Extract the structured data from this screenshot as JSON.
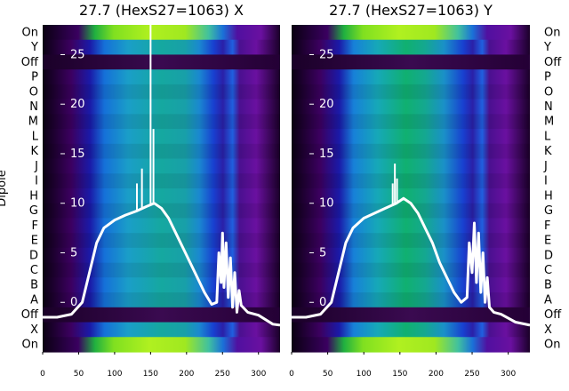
{
  "chart_data": [
    {
      "type": "heatmap",
      "title": "27.7 (HexS27=1063) X",
      "ylabel": "Dipole",
      "xlim": [
        0,
        330
      ],
      "xticks": [
        0,
        50,
        100,
        150,
        200,
        250,
        300
      ],
      "row_labels": [
        "On",
        "Y",
        "Off",
        "P",
        "O",
        "N",
        "M",
        "L",
        "K",
        "J",
        "I",
        "H",
        "G",
        "F",
        "E",
        "D",
        "C",
        "B",
        "A",
        "Off",
        "X",
        "On"
      ],
      "overlay_yticks": [
        25,
        20,
        15,
        10,
        5,
        0
      ],
      "overlay_ylim": [
        -5,
        28
      ],
      "trace": {
        "x": [
          0,
          20,
          40,
          55,
          65,
          75,
          85,
          100,
          115,
          130,
          145,
          155,
          165,
          175,
          185,
          195,
          205,
          215,
          225,
          235,
          242,
          245,
          248,
          250,
          252,
          255,
          258,
          261,
          264,
          267,
          270,
          273,
          276,
          285,
          300,
          320,
          330
        ],
        "y": [
          -1.5,
          -1.5,
          -1.2,
          0,
          3,
          6,
          7.5,
          8.3,
          8.8,
          9.2,
          9.7,
          10,
          9.5,
          8.5,
          7,
          5.5,
          4,
          2.5,
          1,
          -0.2,
          0,
          5,
          2,
          7,
          1.5,
          6,
          0.5,
          4.5,
          -0.5,
          3,
          -1,
          1.2,
          -0.3,
          -1,
          -1.3,
          -2.2,
          -2.3
        ]
      },
      "spikes": [
        {
          "x": 131,
          "y": 12
        },
        {
          "x": 138,
          "y": 13.5
        },
        {
          "x": 150,
          "y": 28
        },
        {
          "x": 154,
          "y": 17.5
        }
      ]
    },
    {
      "type": "heatmap",
      "title": "27.7 (HexS27=1063) Y",
      "xlim": [
        0,
        330
      ],
      "xticks": [
        0,
        50,
        100,
        150,
        200,
        250,
        300
      ],
      "row_labels": [
        "On",
        "Y",
        "Off",
        "P",
        "O",
        "N",
        "M",
        "L",
        "K",
        "J",
        "I",
        "H",
        "G",
        "F",
        "E",
        "D",
        "C",
        "B",
        "A",
        "Off",
        "X",
        "On"
      ],
      "overlay_yticks": [
        25,
        20,
        15,
        10,
        5,
        0
      ],
      "overlay_ylim": [
        -5,
        28
      ],
      "trace": {
        "x": [
          0,
          20,
          40,
          55,
          65,
          75,
          85,
          100,
          115,
          130,
          145,
          155,
          165,
          175,
          185,
          195,
          205,
          215,
          225,
          235,
          243,
          246,
          250,
          253,
          256,
          259,
          262,
          265,
          268,
          271,
          274,
          280,
          290,
          310,
          330
        ],
        "y": [
          -1.5,
          -1.5,
          -1.2,
          0,
          3,
          6,
          7.5,
          8.5,
          9,
          9.5,
          10,
          10.5,
          10,
          9,
          7.5,
          6,
          4,
          2.5,
          1,
          0,
          0.5,
          6,
          3,
          8,
          2,
          7,
          1,
          5,
          0,
          2.5,
          -0.5,
          -1,
          -1.2,
          -2,
          -2.3
        ]
      },
      "spikes": [
        {
          "x": 140,
          "y": 12
        },
        {
          "x": 143,
          "y": 14
        },
        {
          "x": 146,
          "y": 12.5
        }
      ]
    }
  ]
}
